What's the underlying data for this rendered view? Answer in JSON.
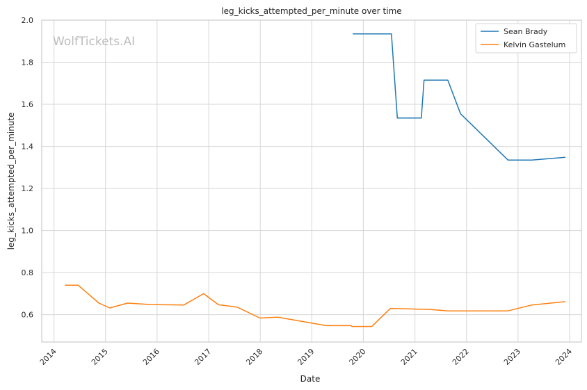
{
  "watermark": "WolfTickets.AI",
  "chart_data": {
    "type": "line",
    "title": "leg_kicks_attempted_per_minute over time",
    "xlabel": "Date",
    "ylabel": "leg_kicks_attempted_per_minute",
    "xlim": [
      "2013-10-06",
      "2024-03-25"
    ],
    "ylim": [
      0.47,
      2.0
    ],
    "x_ticks": [
      "2014",
      "2015",
      "2016",
      "2017",
      "2018",
      "2019",
      "2020",
      "2021",
      "2022",
      "2023",
      "2024"
    ],
    "y_ticks": [
      "0.6",
      "0.8",
      "1.0",
      "1.2",
      "1.4",
      "1.6",
      "1.8",
      "2.0"
    ],
    "grid": true,
    "legend_position": "top-right",
    "series": [
      {
        "name": "Sean Brady",
        "color": "#1f77b4",
        "points": [
          [
            "2019-10-18",
            1.935
          ],
          [
            "2020-07-18",
            1.935
          ],
          [
            "2020-08-29",
            1.535
          ],
          [
            "2021-02-15",
            1.535
          ],
          [
            "2021-03-06",
            1.715
          ],
          [
            "2021-08-21",
            1.715
          ],
          [
            "2021-11-20",
            1.555
          ],
          [
            "2022-10-22",
            1.335
          ],
          [
            "2023-04-08",
            1.335
          ],
          [
            "2023-12-02",
            1.348
          ]
        ]
      },
      {
        "name": "Kelvin Gastelum",
        "color": "#ff7f0e",
        "points": [
          [
            "2014-03-18",
            0.74
          ],
          [
            "2014-06-21",
            0.74
          ],
          [
            "2014-11-15",
            0.655
          ],
          [
            "2015-01-31",
            0.632
          ],
          [
            "2015-06-06",
            0.655
          ],
          [
            "2015-11-21",
            0.648
          ],
          [
            "2016-07-09",
            0.646
          ],
          [
            "2016-11-26",
            0.7
          ],
          [
            "2017-03-11",
            0.647
          ],
          [
            "2017-07-22",
            0.636
          ],
          [
            "2017-12-30",
            0.584
          ],
          [
            "2018-05-05",
            0.588
          ],
          [
            "2019-04-13",
            0.548
          ],
          [
            "2019-10-06",
            0.548
          ],
          [
            "2019-10-12",
            0.544
          ],
          [
            "2020-03-01",
            0.544
          ],
          [
            "2020-07-11",
            0.63
          ],
          [
            "2021-04-17",
            0.625
          ],
          [
            "2021-08-21",
            0.618
          ],
          [
            "2022-10-22",
            0.618
          ],
          [
            "2023-04-08",
            0.646
          ],
          [
            "2023-12-02",
            0.662
          ]
        ]
      }
    ]
  }
}
